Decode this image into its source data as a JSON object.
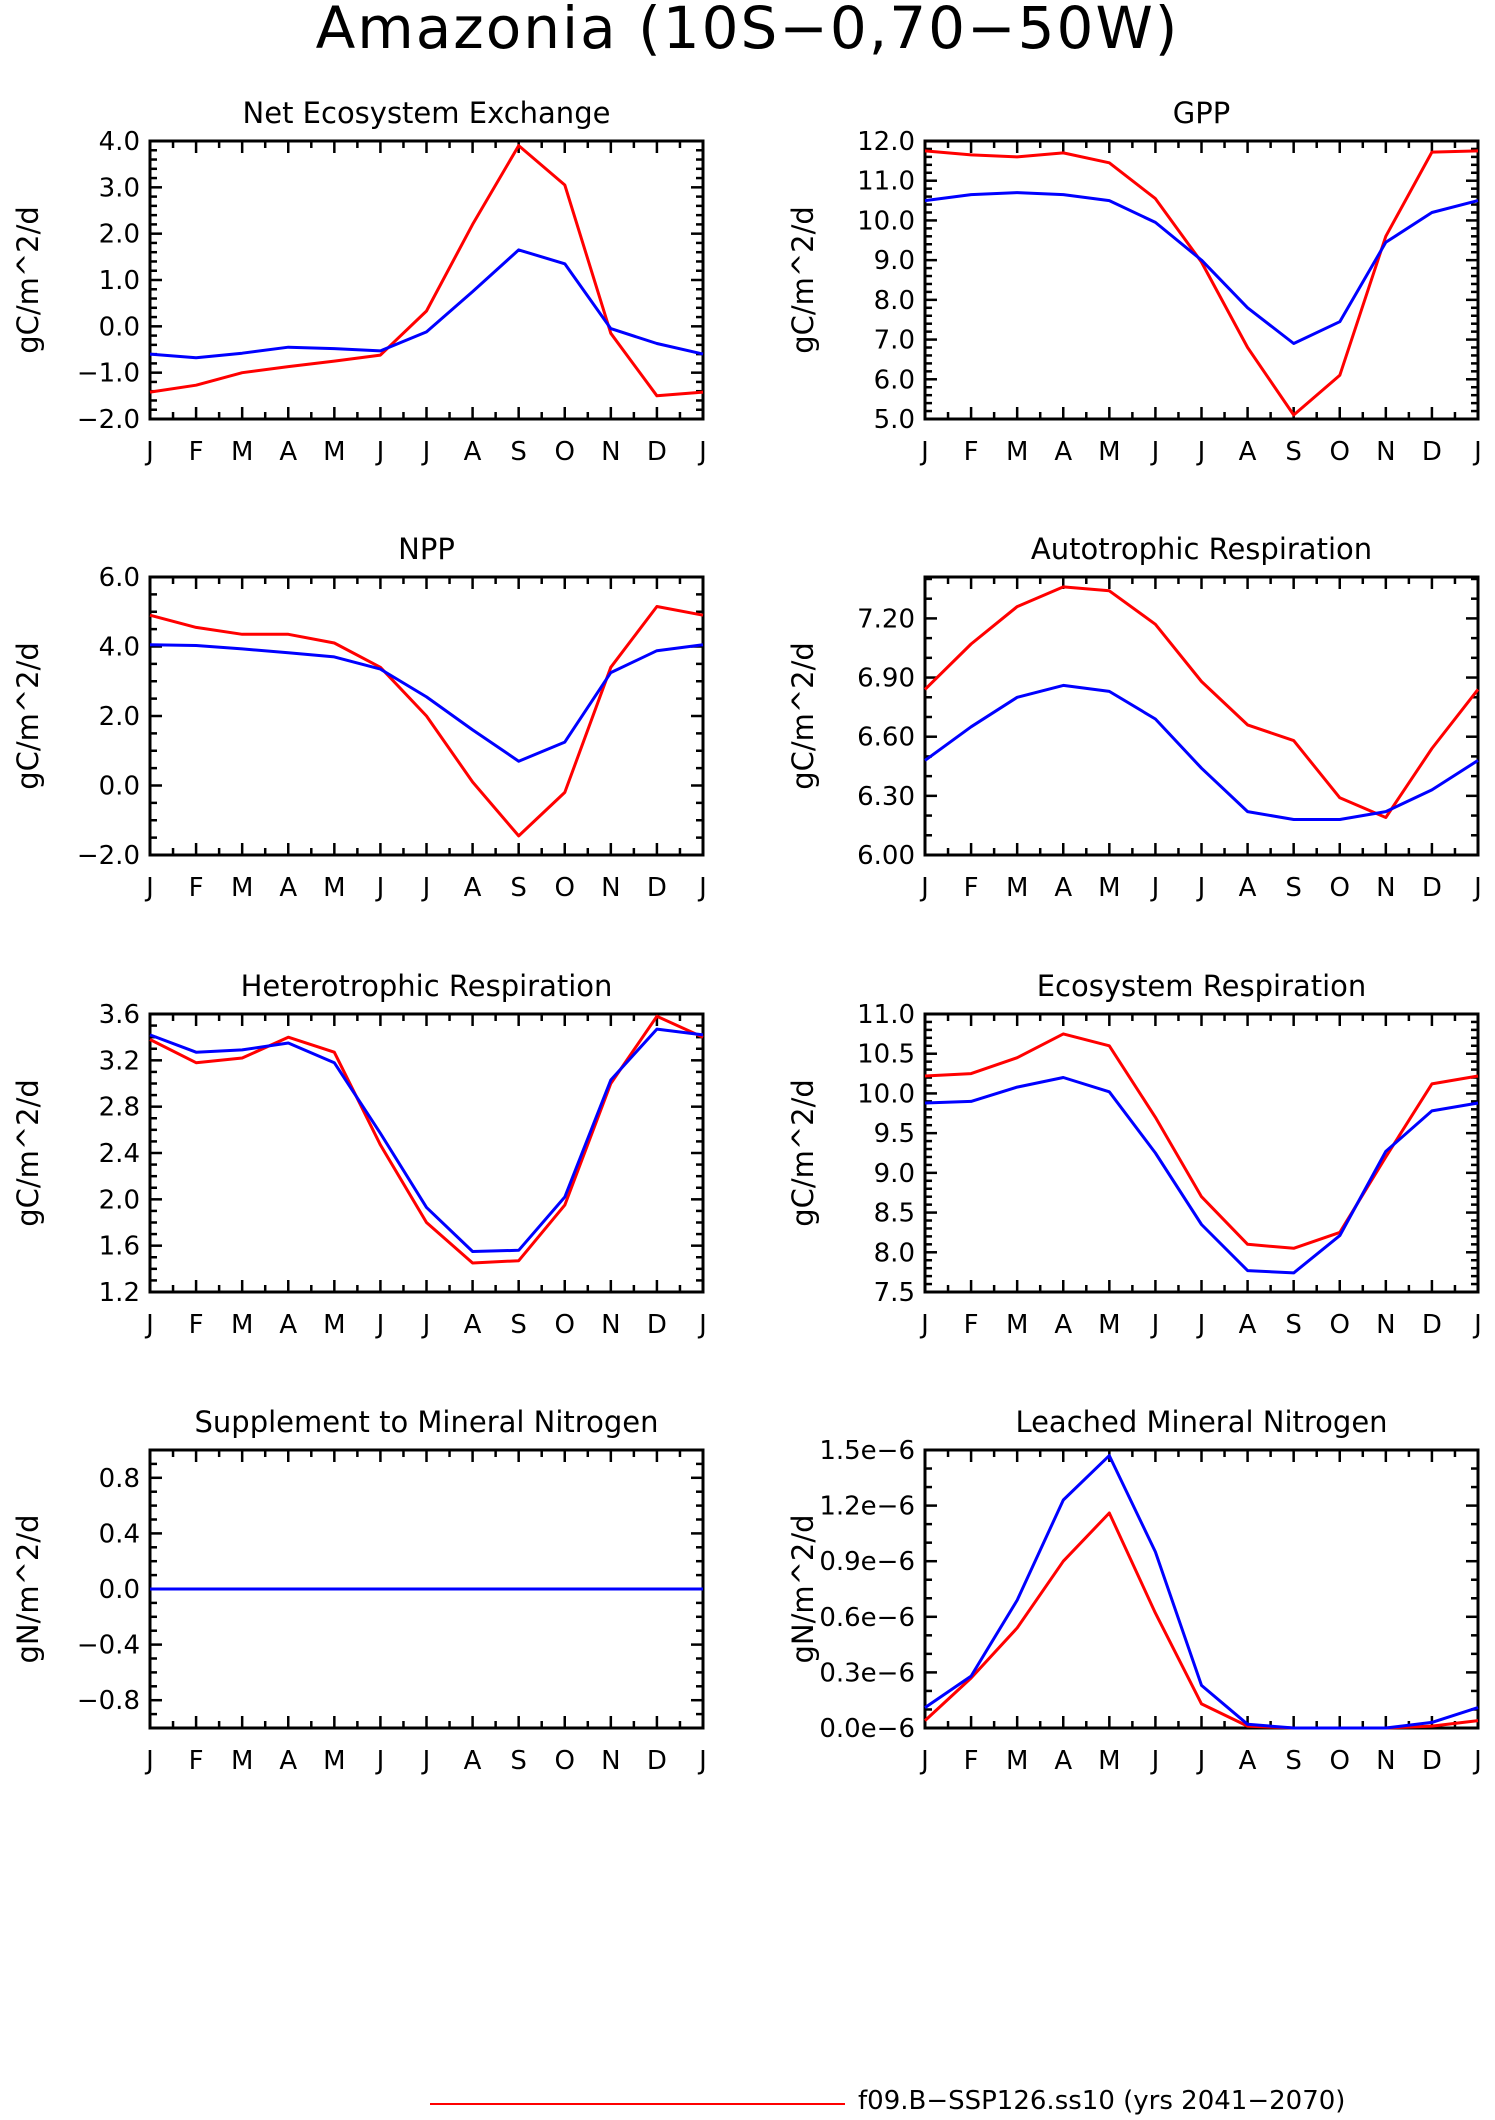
{
  "page": {
    "title": "Amazonia (10S−0,70−50W)"
  },
  "legend": {
    "entries": [
      {
        "label": "f09.B−SSP126.ss10 (yrs 2041−2070)",
        "color": "#ff0000"
      }
    ]
  },
  "colors": {
    "series_red": "#ff0000",
    "series_blue": "#0000ff"
  },
  "chart_data": [
    {
      "type": "line",
      "title": "Net Ecosystem Exchange",
      "xlabel": "",
      "ylabel": "gC/m^2/d",
      "categories": [
        "J",
        "F",
        "M",
        "A",
        "M",
        "J",
        "J",
        "A",
        "S",
        "O",
        "N",
        "D",
        "J"
      ],
      "ylim": [
        -2.0,
        4.0
      ],
      "yticks": [
        "4.0",
        "3.0",
        "2.0",
        "1.0",
        "0.0",
        "−1.0",
        "−2.0"
      ],
      "yminor_per_major": 5,
      "series": [
        {
          "color": "#ff0000",
          "values": [
            -1.42,
            -1.27,
            -1.0,
            -0.87,
            -0.75,
            -0.62,
            0.33,
            2.2,
            3.9,
            3.05,
            -0.15,
            -1.5,
            -1.42
          ]
        },
        {
          "color": "#0000ff",
          "values": [
            -0.6,
            -0.68,
            -0.58,
            -0.45,
            -0.48,
            -0.53,
            -0.12,
            0.75,
            1.65,
            1.35,
            -0.05,
            -0.37,
            -0.6
          ]
        }
      ]
    },
    {
      "type": "line",
      "title": "GPP",
      "xlabel": "",
      "ylabel": "gC/m^2/d",
      "categories": [
        "J",
        "F",
        "M",
        "A",
        "M",
        "J",
        "J",
        "A",
        "S",
        "O",
        "N",
        "D",
        "J"
      ],
      "ylim": [
        5.0,
        12.0
      ],
      "yticks": [
        "12.0",
        "11.0",
        "10.0",
        "9.0",
        "8.0",
        "7.0",
        "6.0",
        "5.0"
      ],
      "yminor_per_major": 5,
      "series": [
        {
          "color": "#ff0000",
          "values": [
            11.75,
            11.65,
            11.6,
            11.7,
            11.45,
            10.55,
            8.95,
            6.8,
            5.1,
            6.1,
            9.6,
            11.72,
            11.75
          ]
        },
        {
          "color": "#0000ff",
          "values": [
            10.5,
            10.65,
            10.7,
            10.65,
            10.5,
            9.95,
            9.0,
            7.8,
            6.9,
            7.45,
            9.45,
            10.2,
            10.5
          ]
        }
      ]
    },
    {
      "type": "line",
      "title": "NPP",
      "xlabel": "",
      "ylabel": "gC/m^2/d",
      "categories": [
        "J",
        "F",
        "M",
        "A",
        "M",
        "J",
        "J",
        "A",
        "S",
        "O",
        "N",
        "D",
        "J"
      ],
      "ylim": [
        -2.0,
        6.0
      ],
      "yticks": [
        "6.0",
        "4.0",
        "2.0",
        "0.0",
        "−2.0"
      ],
      "yminor_per_major": 4,
      "series": [
        {
          "color": "#ff0000",
          "values": [
            4.9,
            4.55,
            4.35,
            4.35,
            4.1,
            3.4,
            2.0,
            0.1,
            -1.45,
            -0.2,
            3.4,
            5.15,
            4.9
          ]
        },
        {
          "color": "#0000ff",
          "values": [
            4.05,
            4.03,
            3.93,
            3.82,
            3.7,
            3.35,
            2.55,
            1.6,
            0.7,
            1.25,
            3.25,
            3.88,
            4.05
          ]
        }
      ]
    },
    {
      "type": "line",
      "title": "Autotrophic Respiration",
      "xlabel": "",
      "ylabel": "gC/m^2/d",
      "categories": [
        "J",
        "F",
        "M",
        "A",
        "M",
        "J",
        "J",
        "A",
        "S",
        "O",
        "N",
        "D",
        "J"
      ],
      "ylim": [
        6.0,
        7.41
      ],
      "yticks": [
        "7.20",
        "6.90",
        "6.60",
        "6.30",
        "6.00"
      ],
      "yminor_per_major": 3,
      "series": [
        {
          "color": "#ff0000",
          "values": [
            6.84,
            7.07,
            7.26,
            7.36,
            7.34,
            7.17,
            6.88,
            6.66,
            6.58,
            6.29,
            6.19,
            6.54,
            6.84
          ]
        },
        {
          "color": "#0000ff",
          "values": [
            6.48,
            6.65,
            6.8,
            6.86,
            6.83,
            6.69,
            6.44,
            6.22,
            6.18,
            6.18,
            6.22,
            6.33,
            6.48
          ]
        }
      ]
    },
    {
      "type": "line",
      "title": "Heterotrophic Respiration",
      "xlabel": "",
      "ylabel": "gC/m^2/d",
      "categories": [
        "J",
        "F",
        "M",
        "A",
        "M",
        "J",
        "J",
        "A",
        "S",
        "O",
        "N",
        "D",
        "J"
      ],
      "ylim": [
        1.2,
        3.6
      ],
      "yticks": [
        "3.6",
        "3.2",
        "2.8",
        "2.4",
        "2.0",
        "1.6",
        "1.2"
      ],
      "yminor_per_major": 4,
      "series": [
        {
          "color": "#ff0000",
          "values": [
            3.38,
            3.18,
            3.22,
            3.4,
            3.27,
            2.47,
            1.8,
            1.45,
            1.47,
            1.95,
            3.0,
            3.58,
            3.4
          ]
        },
        {
          "color": "#0000ff",
          "values": [
            3.42,
            3.27,
            3.29,
            3.35,
            3.18,
            2.57,
            1.93,
            1.55,
            1.56,
            2.02,
            3.03,
            3.47,
            3.42
          ]
        }
      ]
    },
    {
      "type": "line",
      "title": "Ecosystem Respiration",
      "xlabel": "",
      "ylabel": "gC/m^2/d",
      "categories": [
        "J",
        "F",
        "M",
        "A",
        "M",
        "J",
        "J",
        "A",
        "S",
        "O",
        "N",
        "D",
        "J"
      ],
      "ylim": [
        7.5,
        11.0
      ],
      "yticks": [
        "11.0",
        "10.5",
        "10.0",
        "9.5",
        "9.0",
        "8.5",
        "8.0",
        "7.5"
      ],
      "yminor_per_major": 5,
      "series": [
        {
          "color": "#ff0000",
          "values": [
            10.22,
            10.25,
            10.45,
            10.75,
            10.6,
            9.7,
            8.7,
            8.1,
            8.05,
            8.25,
            9.2,
            10.12,
            10.22
          ]
        },
        {
          "color": "#0000ff",
          "values": [
            9.88,
            9.9,
            10.08,
            10.2,
            10.02,
            9.25,
            8.35,
            7.77,
            7.74,
            8.21,
            9.27,
            9.78,
            9.88
          ]
        }
      ]
    },
    {
      "type": "line",
      "title": "Supplement to Mineral Nitrogen",
      "xlabel": "",
      "ylabel": "gN/m^2/d",
      "categories": [
        "J",
        "F",
        "M",
        "A",
        "M",
        "J",
        "J",
        "A",
        "S",
        "O",
        "N",
        "D",
        "J"
      ],
      "ylim": [
        -1.0,
        1.0
      ],
      "yticks": [
        "0.8",
        "0.4",
        "0.0",
        "−0.4",
        "−0.8"
      ],
      "ytick_values": [
        0.8,
        0.4,
        0.0,
        -0.4,
        -0.8
      ],
      "yminor_per_major": 4,
      "series": [
        {
          "color": "#ff0000",
          "values": [
            0,
            0,
            0,
            0,
            0,
            0,
            0,
            0,
            0,
            0,
            0,
            0,
            0
          ]
        },
        {
          "color": "#0000ff",
          "values": [
            0,
            0,
            0,
            0,
            0,
            0,
            0,
            0,
            0,
            0,
            0,
            0,
            0
          ]
        }
      ]
    },
    {
      "type": "line",
      "title": "Leached Mineral Nitrogen",
      "xlabel": "",
      "ylabel": "gN/m^2/d",
      "categories": [
        "J",
        "F",
        "M",
        "A",
        "M",
        "J",
        "J",
        "A",
        "S",
        "O",
        "N",
        "D",
        "J"
      ],
      "ylim": [
        0.0,
        1.5e-06
      ],
      "yticks": [
        "1.5e−6",
        "1.2e−6",
        "0.9e−6",
        "0.6e−6",
        "0.3e−6",
        "0.0e−6"
      ],
      "yminor_per_major": 3,
      "series": [
        {
          "color": "#ff0000",
          "values": [
            4e-08,
            2.7e-07,
            5.4e-07,
            9e-07,
            1.16e-06,
            6.2e-07,
            1.3e-07,
            1e-08,
            0.0,
            0.0,
            0.0,
            1e-08,
            4e-08
          ]
        },
        {
          "color": "#0000ff",
          "values": [
            1.1e-07,
            2.8e-07,
            6.9e-07,
            1.23e-06,
            1.47e-06,
            9.5e-07,
            2.3e-07,
            2e-08,
            0.0,
            0.0,
            0.0,
            3e-08,
            1.1e-07
          ]
        }
      ]
    }
  ]
}
